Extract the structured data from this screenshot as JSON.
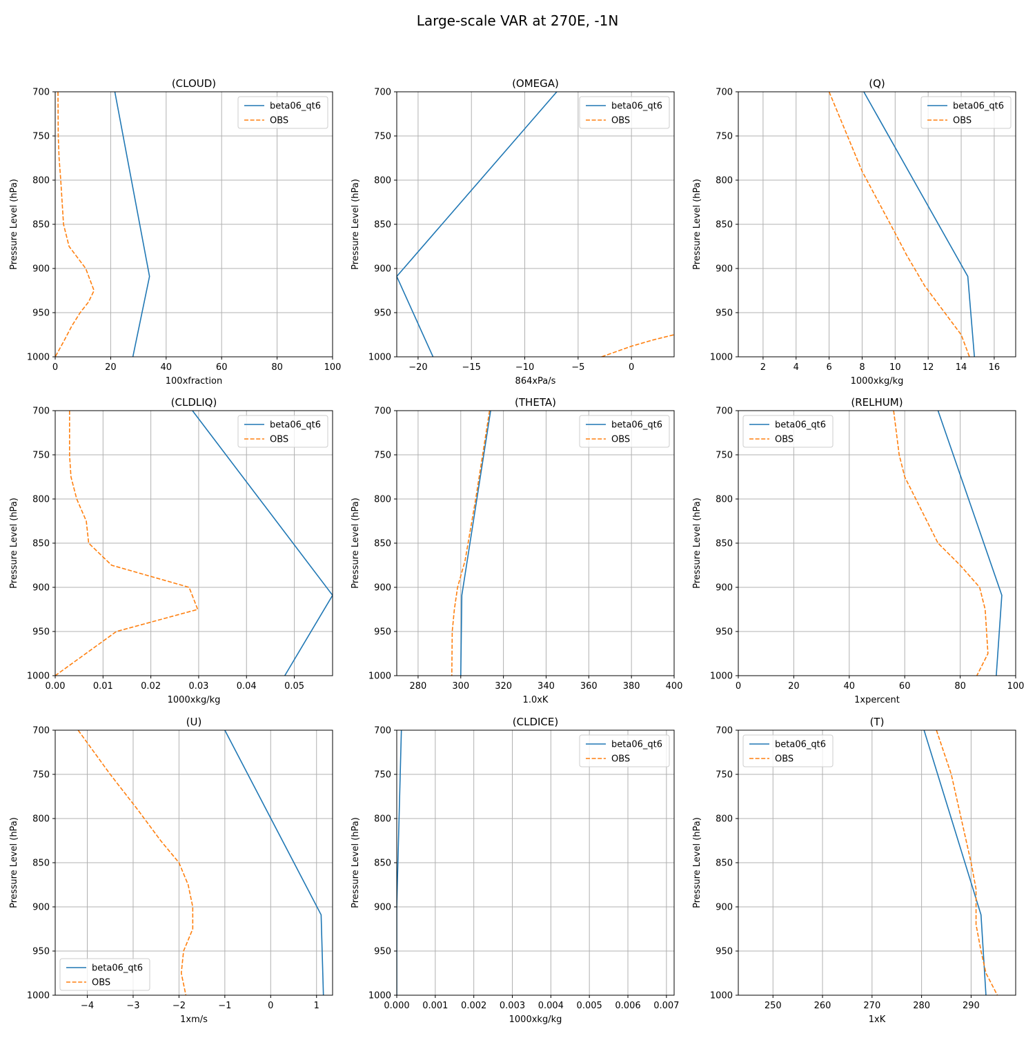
{
  "figure": {
    "suptitle": "Large-scale VAR at 270E, -1N"
  },
  "colors": {
    "model": "#1f77b4",
    "obs": "#ff7f0e"
  },
  "chart_data": [
    {
      "type": "line",
      "title": "(CLOUD)",
      "xlabel": "100xfraction",
      "ylabel": "Pressure Level (hPa)",
      "xlim": [
        0,
        100
      ],
      "ylim": [
        1000,
        700
      ],
      "xticks": [
        0,
        20,
        40,
        60,
        80,
        100
      ],
      "xtick_labels": [
        "0",
        "20",
        "40",
        "60",
        "80",
        "100"
      ],
      "yticks": [
        700,
        750,
        800,
        850,
        900,
        950,
        1000
      ],
      "ytick_labels": [
        "700",
        "750",
        "800",
        "850",
        "900",
        "950",
        "1000"
      ],
      "grid": true,
      "legend": "upper right",
      "series": [
        {
          "name": "beta06_qt6",
          "style": "solid",
          "x": [
            21.5,
            34,
            28
          ],
          "y": [
            700,
            909,
            1000
          ]
        },
        {
          "name": "OBS",
          "style": "dashed",
          "x": [
            1,
            1.1,
            1.4,
            2,
            3,
            5,
            11,
            14,
            12,
            9,
            6,
            3,
            0
          ],
          "y": [
            700,
            750,
            775,
            800,
            850,
            875,
            900,
            925,
            938,
            950,
            965,
            983,
            1000
          ]
        }
      ]
    },
    {
      "type": "line",
      "title": "(OMEGA)",
      "xlabel": "864xPa/s",
      "ylabel": "Pressure Level (hPa)",
      "xlim": [
        -22,
        4
      ],
      "ylim": [
        1000,
        700
      ],
      "xticks": [
        -20,
        -15,
        -10,
        -5,
        0
      ],
      "xtick_labels": [
        "−20",
        "−15",
        "−10",
        "−5",
        "0"
      ],
      "yticks": [
        700,
        750,
        800,
        850,
        900,
        950,
        1000
      ],
      "ytick_labels": [
        "700",
        "750",
        "800",
        "850",
        "900",
        "950",
        "1000"
      ],
      "grid": true,
      "legend": "upper right",
      "series": [
        {
          "name": "beta06_qt6",
          "style": "solid",
          "x": [
            -7,
            -22,
            -18.6
          ],
          "y": [
            700,
            909,
            1000
          ]
        },
        {
          "name": "OBS",
          "style": "dashed",
          "x": [
            -2.8,
            0,
            2,
            4
          ],
          "y": [
            1000,
            988,
            981,
            975
          ]
        }
      ]
    },
    {
      "type": "line",
      "title": "(Q)",
      "xlabel": "1000xkg/kg",
      "ylabel": "Pressure Level (hPa)",
      "xlim": [
        0.5,
        17.3
      ],
      "ylim": [
        1000,
        700
      ],
      "xticks": [
        2,
        4,
        6,
        8,
        10,
        12,
        14,
        16
      ],
      "xtick_labels": [
        "2",
        "4",
        "6",
        "8",
        "10",
        "12",
        "14",
        "16"
      ],
      "yticks": [
        700,
        750,
        800,
        850,
        900,
        950,
        1000
      ],
      "ytick_labels": [
        "700",
        "750",
        "800",
        "850",
        "900",
        "950",
        "1000"
      ],
      "grid": true,
      "legend": "upper right",
      "series": [
        {
          "name": "beta06_qt6",
          "style": "solid",
          "x": [
            8.1,
            14.4,
            14.8
          ],
          "y": [
            700,
            909,
            1000
          ]
        },
        {
          "name": "OBS",
          "style": "dashed",
          "x": [
            6,
            7,
            8,
            9,
            10,
            10.7,
            11.8,
            13,
            14,
            14.5
          ],
          "y": [
            700,
            745,
            790,
            825,
            860,
            885,
            920,
            950,
            975,
            1000
          ]
        }
      ]
    },
    {
      "type": "line",
      "title": "(CLDLIQ)",
      "xlabel": "1000xkg/kg",
      "ylabel": "Pressure Level (hPa)",
      "xlim": [
        0,
        0.058
      ],
      "ylim": [
        1000,
        700
      ],
      "xticks": [
        0,
        0.01,
        0.02,
        0.03,
        0.04,
        0.05
      ],
      "xtick_labels": [
        "0.00",
        "0.01",
        "0.02",
        "0.03",
        "0.04",
        "0.05"
      ],
      "yticks": [
        700,
        750,
        800,
        850,
        900,
        950,
        1000
      ],
      "ytick_labels": [
        "700",
        "750",
        "800",
        "850",
        "900",
        "950",
        "1000"
      ],
      "grid": true,
      "legend": "upper right",
      "series": [
        {
          "name": "beta06_qt6",
          "style": "solid",
          "x": [
            0.0287,
            0.058,
            0.048
          ],
          "y": [
            700,
            909,
            1000
          ]
        },
        {
          "name": "OBS",
          "style": "dashed",
          "x": [
            0.003,
            0.003,
            0.0033,
            0.0045,
            0.0065,
            0.007,
            0.0118,
            0.028,
            0.0298,
            0.0128,
            0
          ],
          "y": [
            700,
            750,
            775,
            800,
            825,
            850,
            875,
            900,
            925,
            950,
            1000
          ]
        }
      ]
    },
    {
      "type": "line",
      "title": "(THETA)",
      "xlabel": "1.0xK",
      "ylabel": "Pressure Level (hPa)",
      "xlim": [
        270,
        400
      ],
      "ylim": [
        1000,
        700
      ],
      "xticks": [
        280,
        300,
        320,
        340,
        360,
        380,
        400
      ],
      "xtick_labels": [
        "280",
        "300",
        "320",
        "340",
        "360",
        "380",
        "400"
      ],
      "yticks": [
        700,
        750,
        800,
        850,
        900,
        950,
        1000
      ],
      "ytick_labels": [
        "700",
        "750",
        "800",
        "850",
        "900",
        "950",
        "1000"
      ],
      "grid": true,
      "legend": "upper right",
      "series": [
        {
          "name": "beta06_qt6",
          "style": "solid",
          "x": [
            314,
            300.5,
            300
          ],
          "y": [
            700,
            909,
            1000
          ]
        },
        {
          "name": "OBS",
          "style": "dashed",
          "x": [
            313.5,
            307,
            302,
            298.5,
            297,
            296,
            295.8
          ],
          "y": [
            700,
            800,
            870,
            900,
            925,
            950,
            1000
          ]
        }
      ]
    },
    {
      "type": "line",
      "title": "(RELHUM)",
      "xlabel": "1xpercent",
      "ylabel": "Pressure Level (hPa)",
      "xlim": [
        0,
        100
      ],
      "ylim": [
        1000,
        700
      ],
      "xticks": [
        0,
        20,
        40,
        60,
        80,
        100
      ],
      "xtick_labels": [
        "0",
        "20",
        "40",
        "60",
        "80",
        "100"
      ],
      "yticks": [
        700,
        750,
        800,
        850,
        900,
        950,
        1000
      ],
      "ytick_labels": [
        "700",
        "750",
        "800",
        "850",
        "900",
        "950",
        "1000"
      ],
      "grid": true,
      "legend": "upper left",
      "series": [
        {
          "name": "beta06_qt6",
          "style": "solid",
          "x": [
            72,
            95,
            93
          ],
          "y": [
            700,
            909,
            1000
          ]
        },
        {
          "name": "OBS",
          "style": "dashed",
          "x": [
            56,
            58,
            60,
            64,
            68,
            72,
            80,
            87,
            89,
            90,
            86
          ],
          "y": [
            700,
            750,
            775,
            800,
            825,
            850,
            875,
            900,
            925,
            975,
            1000
          ]
        }
      ]
    },
    {
      "type": "line",
      "title": "(U)",
      "xlabel": "1xm/s",
      "ylabel": "Pressure Level (hPa)",
      "xlim": [
        -4.7,
        1.35
      ],
      "ylim": [
        1000,
        700
      ],
      "xticks": [
        -4,
        -3,
        -2,
        -1,
        0,
        1
      ],
      "xtick_labels": [
        "−4",
        "−3",
        "−2",
        "−1",
        "0",
        "1"
      ],
      "yticks": [
        700,
        750,
        800,
        850,
        900,
        950,
        1000
      ],
      "ytick_labels": [
        "700",
        "750",
        "800",
        "850",
        "900",
        "950",
        "1000"
      ],
      "grid": true,
      "legend": "lower left",
      "series": [
        {
          "name": "beta06_qt6",
          "style": "solid",
          "x": [
            -1,
            1.1,
            1.15
          ],
          "y": [
            700,
            909,
            1000
          ]
        },
        {
          "name": "OBS",
          "style": "dashed",
          "x": [
            -4.2,
            -3.5,
            -2.9,
            -2.4,
            -2,
            -1.8,
            -1.7,
            -1.7,
            -1.9,
            -1.95,
            -1.85
          ],
          "y": [
            700,
            750,
            790,
            825,
            850,
            875,
            900,
            925,
            950,
            975,
            1000
          ]
        }
      ]
    },
    {
      "type": "line",
      "title": "(CLDICE)",
      "xlabel": "1000xkg/kg",
      "ylabel": "Pressure Level (hPa)",
      "xlim": [
        0,
        0.0072
      ],
      "ylim": [
        1000,
        700
      ],
      "xticks": [
        0,
        0.001,
        0.002,
        0.003,
        0.004,
        0.005,
        0.006,
        0.007
      ],
      "xtick_labels": [
        "0.000",
        "0.001",
        "0.002",
        "0.003",
        "0.004",
        "0.005",
        "0.006",
        "0.007"
      ],
      "yticks": [
        700,
        750,
        800,
        850,
        900,
        950,
        1000
      ],
      "ytick_labels": [
        "700",
        "750",
        "800",
        "850",
        "900",
        "950",
        "1000"
      ],
      "grid": true,
      "legend": "upper right",
      "series": [
        {
          "name": "beta06_qt6",
          "style": "solid",
          "x": [
            0.00012,
            0.0,
            0.0
          ],
          "y": [
            700,
            900,
            1000
          ]
        },
        {
          "name": "OBS",
          "style": "dashed",
          "x": [],
          "y": []
        }
      ]
    },
    {
      "type": "line",
      "title": "(T)",
      "xlabel": "1xK",
      "ylabel": "Pressure Level (hPa)",
      "xlim": [
        243,
        299
      ],
      "ylim": [
        1000,
        700
      ],
      "xticks": [
        250,
        260,
        270,
        280,
        290
      ],
      "xtick_labels": [
        "250",
        "260",
        "270",
        "280",
        "290"
      ],
      "yticks": [
        700,
        750,
        800,
        850,
        900,
        950,
        1000
      ],
      "ytick_labels": [
        "700",
        "750",
        "800",
        "850",
        "900",
        "950",
        "1000"
      ],
      "grid": true,
      "legend": "upper left",
      "series": [
        {
          "name": "beta06_qt6",
          "style": "solid",
          "x": [
            280.5,
            292,
            293
          ],
          "y": [
            700,
            909,
            1000
          ]
        },
        {
          "name": "OBS",
          "style": "dashed",
          "x": [
            283,
            286,
            288,
            290,
            291,
            291,
            292,
            293,
            295.3
          ],
          "y": [
            700,
            750,
            800,
            850,
            880,
            920,
            950,
            975,
            1000
          ]
        }
      ]
    }
  ]
}
